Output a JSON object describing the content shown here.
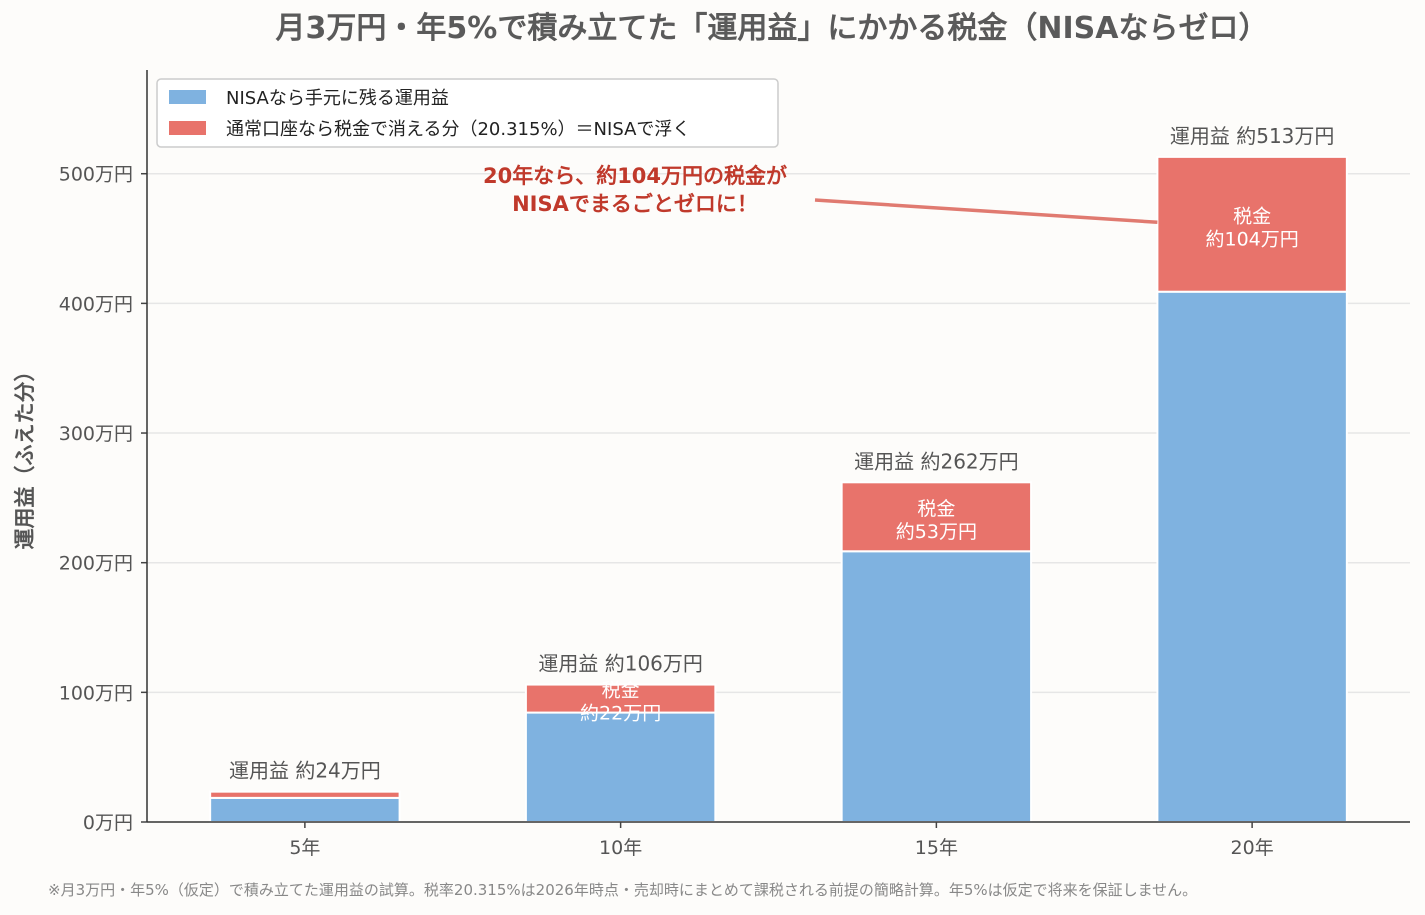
{
  "chart_data": {
    "type": "bar",
    "stacked": true,
    "title": "月3万円・年5%で積み立てた「運用益」にかかる税金（NISAならゼロ）",
    "ylabel": "運用益（ふえた分）",
    "xlabel": "",
    "categories": [
      "5年",
      "10年",
      "15年",
      "20年"
    ],
    "ylim": [
      0,
      580
    ],
    "yticks": [
      0,
      100,
      200,
      300,
      400,
      500
    ],
    "ytick_labels": [
      "0万円",
      "100万円",
      "200万円",
      "300万円",
      "400万円",
      "500万円"
    ],
    "grid": true,
    "legend_position": "top-left",
    "series": [
      {
        "name": "NISAなら手元に残る運用益",
        "color": "#7fb2e0",
        "values": [
          18.6,
          84.4,
          208.8,
          409.0
        ]
      },
      {
        "name": "通常口座なら税金で消える分（20.315%）＝NISAで浮く",
        "color": "#e8736b",
        "values": [
          4.8,
          21.6,
          53.2,
          104.0
        ]
      }
    ],
    "total_labels": [
      "運用益 約24万円",
      "運用益 約106万円",
      "運用益 約262万円",
      "運用益 約513万円"
    ],
    "tax_labels": [
      null,
      [
        "税金",
        "約22万円"
      ],
      [
        "税金",
        "約53万円"
      ],
      [
        "税金",
        "約104万円"
      ]
    ],
    "annotation": {
      "lines": [
        "20年なら、約104万円の税金が",
        "NISAでまるごとゼロに！"
      ],
      "color": "#c0392b"
    },
    "footnote": "※月3万円・年5%（仮定）で積み立てた運用益の試算。税率20.315%は2026年時点・売却時にまとめて課税される前提の簡略計算。年5%は仮定で将来を保証しません。"
  }
}
